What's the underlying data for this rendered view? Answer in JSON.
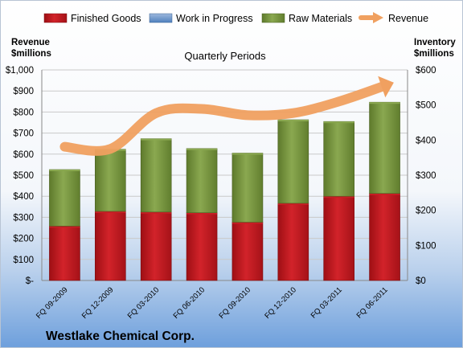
{
  "chart_data": {
    "type": "bar",
    "subtitle": "Quarterly Periods",
    "company": "Westlake Chemical Corp.",
    "left_axis_label": [
      "Revenue",
      "$millions"
    ],
    "right_axis_label": [
      "Inventory",
      "$millions"
    ],
    "left_ylim": [
      0,
      1000
    ],
    "right_ylim": [
      0,
      600
    ],
    "left_ticks": [
      "$-",
      "$100",
      "$200",
      "$300",
      "$400",
      "$500",
      "$600",
      "$700",
      "$800",
      "$900",
      "$1,000"
    ],
    "right_ticks": [
      "$0",
      "$100",
      "$200",
      "$300",
      "$400",
      "$500",
      "$600"
    ],
    "categories": [
      "FQ 09-2009",
      "FQ 12-2009",
      "FQ 03-2010",
      "FQ 06-2010",
      "FQ 09-2010",
      "FQ 12-2010",
      "FQ 03-2011",
      "FQ 06-2011"
    ],
    "legend_position": "top",
    "series": [
      {
        "name": "Finished Goods",
        "kind": "stacked-bar",
        "axis": "right",
        "color": "#c8161d",
        "values": [
          155,
          197,
          195,
          193,
          166,
          220,
          240,
          248
        ]
      },
      {
        "name": "Work in Progress",
        "kind": "stacked-bar",
        "axis": "right",
        "color": "#4f81bd",
        "values": [
          0,
          0,
          0,
          0,
          0,
          0,
          0,
          0
        ]
      },
      {
        "name": "Raw Materials",
        "kind": "stacked-bar",
        "axis": "right",
        "color": "#77933c",
        "values": [
          161,
          177,
          209,
          183,
          197,
          238,
          213,
          260
        ]
      },
      {
        "name": "Revenue",
        "kind": "line",
        "axis": "left",
        "color": "#f0a060",
        "values": [
          635,
          625,
          795,
          815,
          785,
          795,
          850,
          925
        ]
      }
    ]
  }
}
